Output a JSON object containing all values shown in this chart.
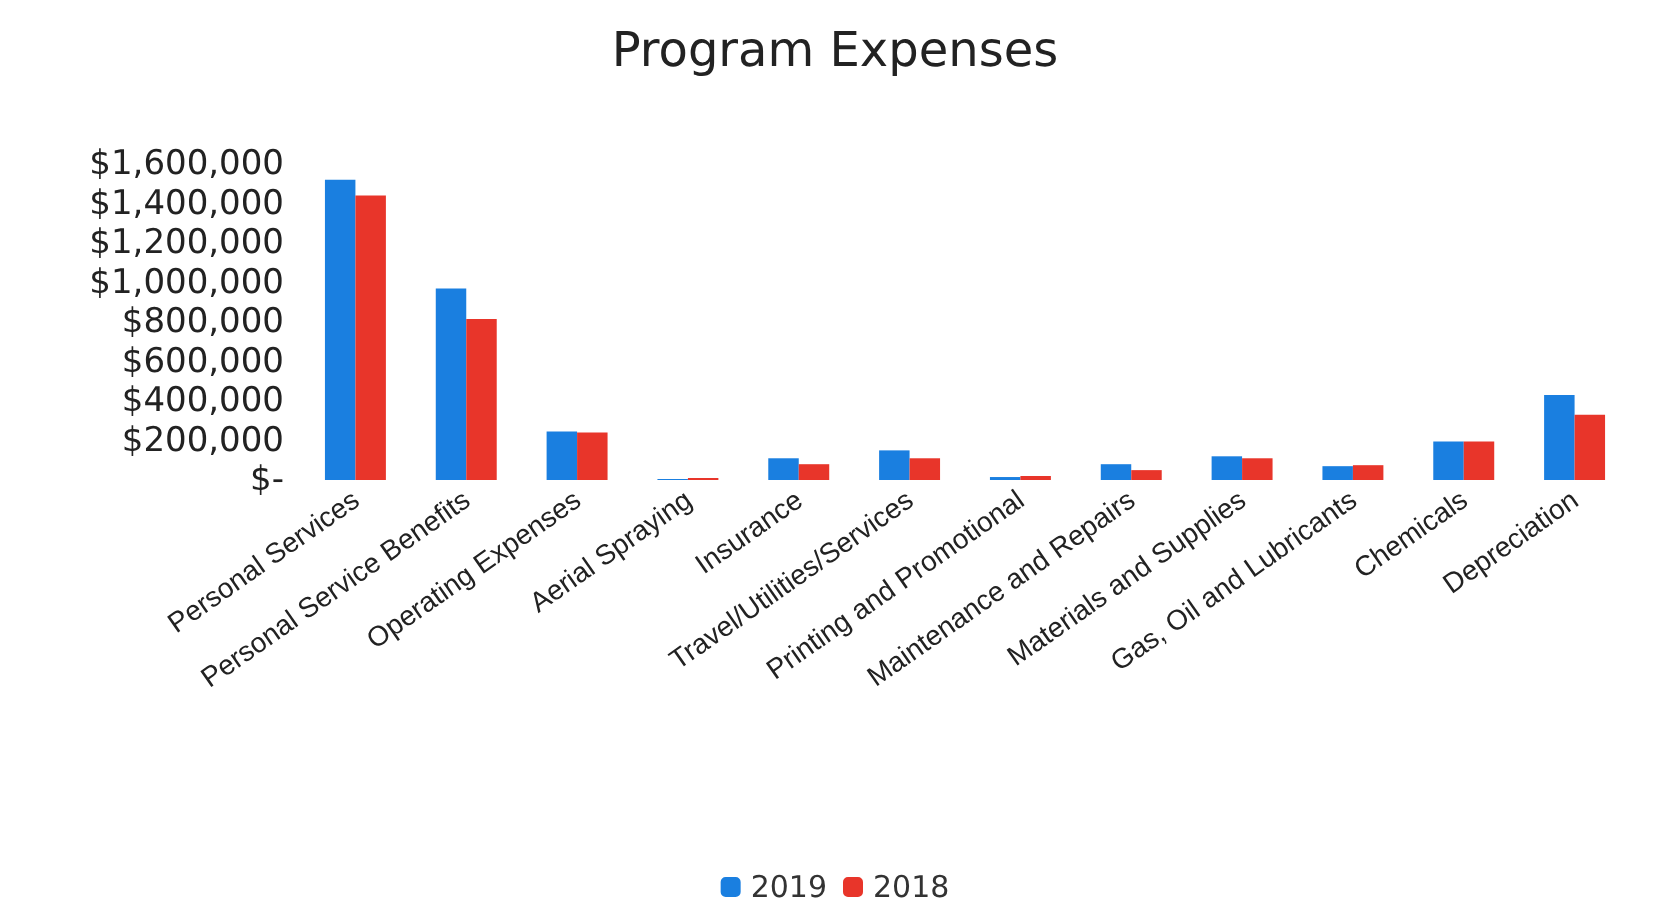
{
  "chart_data": {
    "type": "bar",
    "title": "Program Expenses",
    "categories": [
      "Personal Services",
      "Personal Service Benefits",
      "Operating Expenses",
      "Aerial Spraying",
      "Insurance",
      "Travel/Utilities/Services",
      "Printing and Promotional",
      "Maintenance and Repairs",
      "Materials and Supplies",
      "Gas, Oil and Lubricants",
      "Chemicals",
      "Depreciation"
    ],
    "series": [
      {
        "name": "2019",
        "color": "#1a7fe0",
        "values": [
          1520000,
          970000,
          245000,
          5000,
          110000,
          150000,
          15000,
          80000,
          120000,
          70000,
          195000,
          430000
        ]
      },
      {
        "name": "2018",
        "color": "#e8352a",
        "values": [
          1440000,
          815000,
          240000,
          10000,
          80000,
          110000,
          20000,
          50000,
          110000,
          75000,
          195000,
          330000
        ]
      }
    ],
    "ylim": [
      0,
      1600000
    ],
    "yticks": [
      {
        "value": 0,
        "label": "$-"
      },
      {
        "value": 200000,
        "label": "$200,000"
      },
      {
        "value": 400000,
        "label": "$400,000"
      },
      {
        "value": 600000,
        "label": "$600,000"
      },
      {
        "value": 800000,
        "label": "$800,000"
      },
      {
        "value": 1000000,
        "label": "$1,000,000"
      },
      {
        "value": 1200000,
        "label": "$1,200,000"
      },
      {
        "value": 1400000,
        "label": "$1,400,000"
      },
      {
        "value": 1600000,
        "label": "$1,600,000"
      }
    ],
    "grid": false,
    "legend": "bottom"
  }
}
